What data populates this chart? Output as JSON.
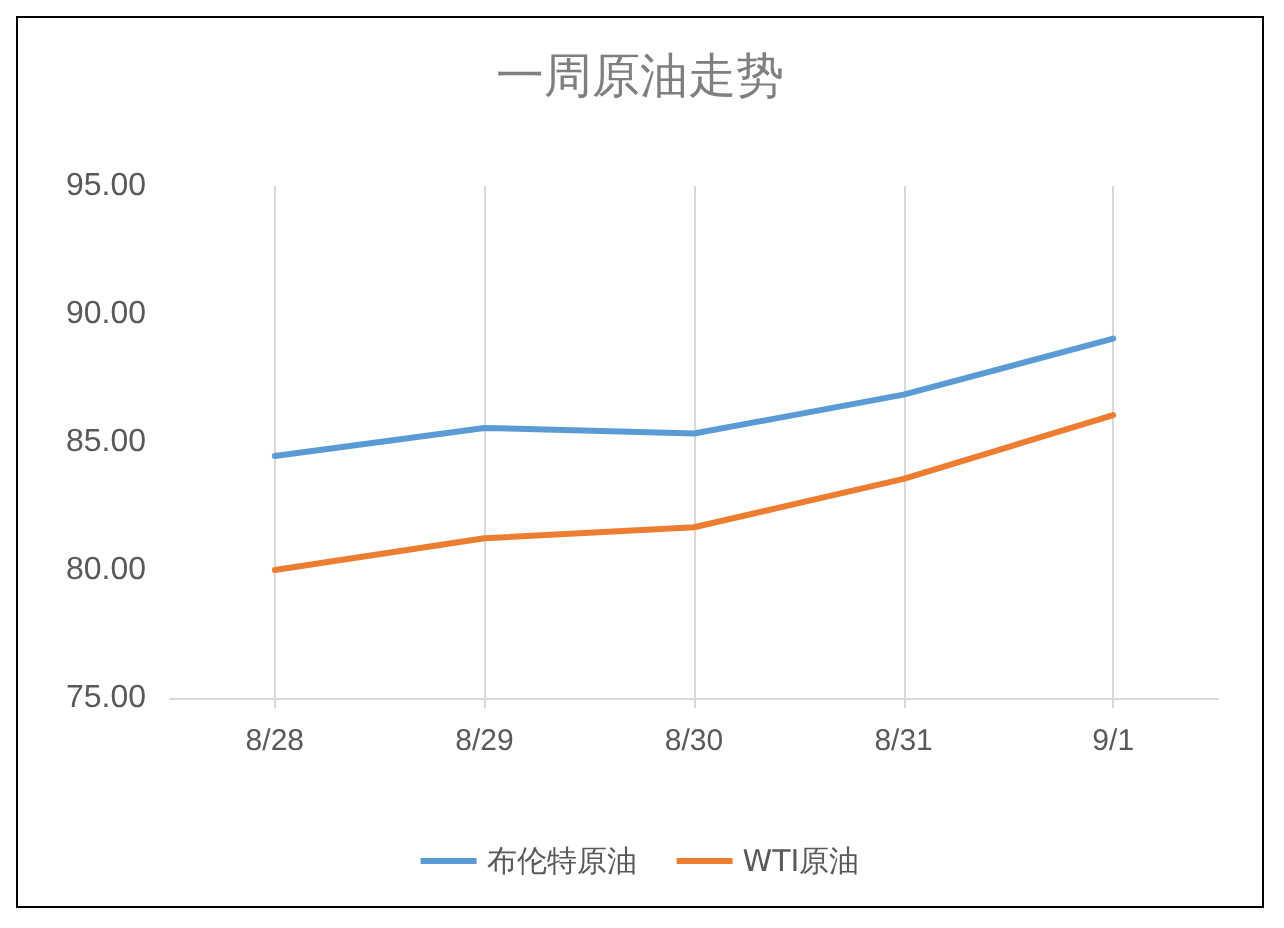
{
  "chart_data": {
    "type": "line",
    "title": "一周原油走势",
    "categories": [
      "8/28",
      "8/29",
      "8/30",
      "8/31",
      "9/1"
    ],
    "series": [
      {
        "name": "布伦特原油",
        "color": "#5b9bd5",
        "values": [
          84.45,
          85.55,
          85.33,
          86.85,
          89.04
        ]
      },
      {
        "name": "WTI原油",
        "color": "#ed7d31",
        "values": [
          80.0,
          81.24,
          81.67,
          83.56,
          86.05
        ]
      }
    ],
    "ylim": [
      75,
      95
    ],
    "yticks": [
      {
        "value": 75,
        "label": "75.00"
      },
      {
        "value": 80,
        "label": "80.00"
      },
      {
        "value": 85,
        "label": "85.00"
      },
      {
        "value": 90,
        "label": "90.00"
      },
      {
        "value": 95,
        "label": "95.00"
      }
    ],
    "grid": "x",
    "legend": "bottom",
    "marker": "none",
    "line_style": "solid"
  }
}
